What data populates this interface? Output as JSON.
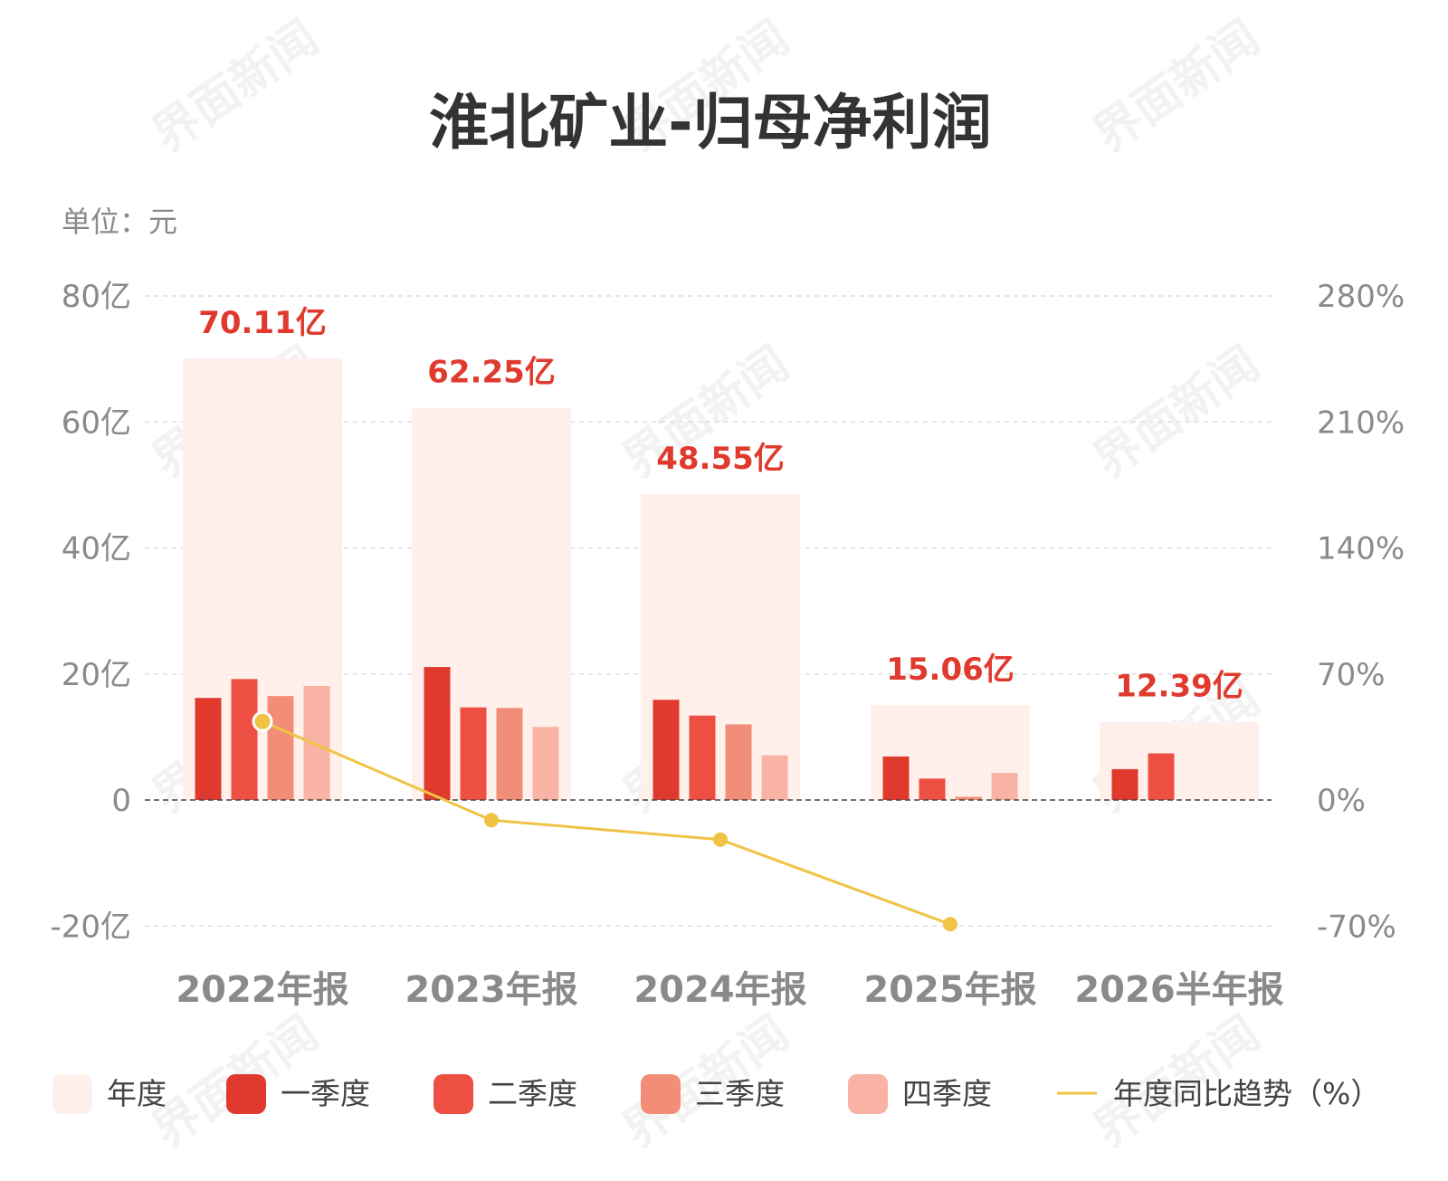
{
  "title": "淮北矿业-归母净利润",
  "unit_label": "单位：元",
  "watermark": "界面新闻",
  "colors": {
    "annual": "#fff0ec",
    "q1": "#e03a2e",
    "q2": "#ee4f43",
    "q3": "#f28d78",
    "q4": "#f8b3a5",
    "yoy": "#f0c345",
    "label": "#e03a2e"
  },
  "chart_data": {
    "type": "bar",
    "categories": [
      "2022年报",
      "2023年报",
      "2024年报",
      "2025年报",
      "2026半年报"
    ],
    "left_axis": {
      "ticks": [
        80,
        60,
        40,
        20,
        0,
        -20
      ],
      "tick_labels": [
        "80亿",
        "60亿",
        "40亿",
        "20亿",
        "0",
        "-20亿"
      ],
      "range": [
        -20,
        80
      ]
    },
    "right_axis": {
      "ticks": [
        280,
        210,
        140,
        70,
        0,
        -70
      ],
      "tick_labels": [
        "280%",
        "210%",
        "140%",
        "70%",
        "0%",
        "-70%"
      ],
      "range": [
        -70,
        280
      ]
    },
    "series": [
      {
        "name": "年度",
        "key": "annual",
        "values": [
          70.11,
          62.25,
          48.55,
          15.06,
          12.39
        ]
      },
      {
        "name": "一季度",
        "key": "q1",
        "values": [
          16.2,
          21.1,
          15.9,
          6.9,
          4.9
        ]
      },
      {
        "name": "二季度",
        "key": "q2",
        "values": [
          19.2,
          14.7,
          13.4,
          3.4,
          7.4
        ]
      },
      {
        "name": "三季度",
        "key": "q3",
        "values": [
          16.5,
          14.6,
          12.0,
          0.5,
          null
        ]
      },
      {
        "name": "四季度",
        "key": "q4",
        "values": [
          18.1,
          11.6,
          7.1,
          4.3,
          null
        ]
      },
      {
        "name": "年度同比趋势（%）",
        "key": "yoy",
        "type": "line",
        "axis": "right",
        "values": [
          43.6,
          -11.2,
          -22.0,
          -69.0,
          null
        ]
      }
    ],
    "data_labels": [
      "70.11亿",
      "62.25亿",
      "48.55亿",
      "15.06亿",
      "12.39亿"
    ],
    "grid": true,
    "legend_position": "bottom"
  }
}
